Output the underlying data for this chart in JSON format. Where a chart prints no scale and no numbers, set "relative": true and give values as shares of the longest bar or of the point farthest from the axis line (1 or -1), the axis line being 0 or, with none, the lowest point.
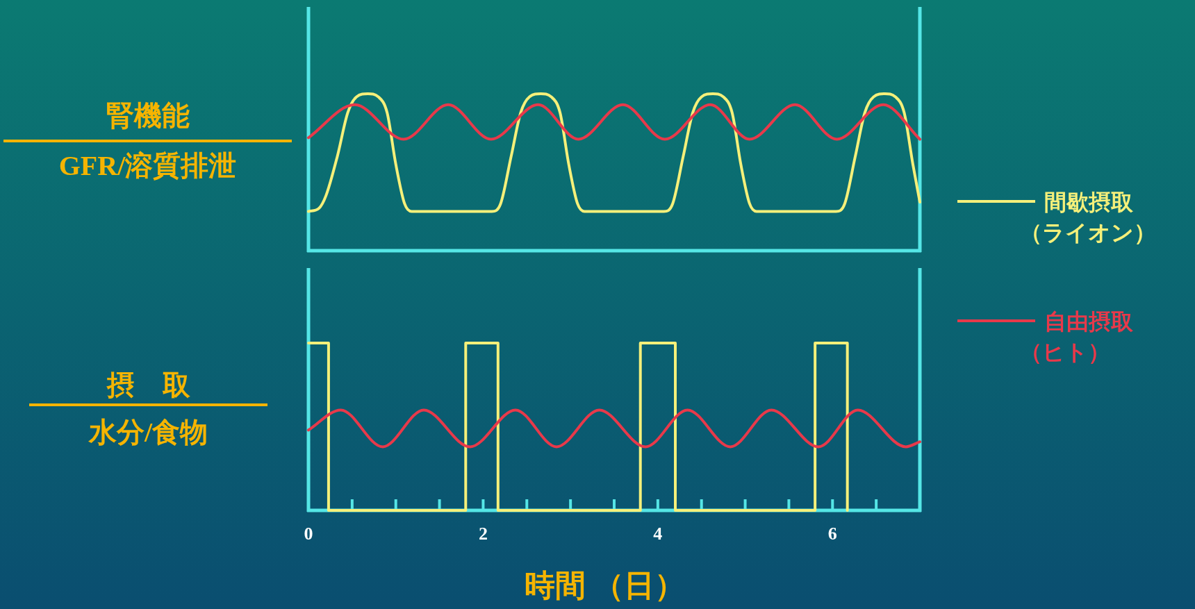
{
  "chart_data": [
    {
      "type": "line",
      "relative": true,
      "ylabel": "腎機能",
      "annotations": [
        "GFR/溶質排泄"
      ],
      "xlim": [
        0,
        7
      ],
      "legend": "right",
      "series": [
        {
          "name": "間歇摂取（ライオン）",
          "color": "#f5f07a",
          "x": [
            0,
            0.12,
            0.2,
            0.33,
            0.45,
            0.55,
            0.68,
            0.8,
            0.9,
            1.0,
            1.1,
            1.18,
            2.1,
            2.2,
            2.32,
            2.43,
            2.53,
            2.66,
            2.78,
            2.88,
            2.98,
            3.08,
            3.16,
            4.07,
            4.17,
            4.29,
            4.4,
            4.5,
            4.63,
            4.75,
            4.85,
            4.95,
            5.05,
            5.13,
            6.04,
            6.14,
            6.26,
            6.37,
            6.47,
            6.6,
            6.72,
            6.82,
            6.92,
            7.0
          ],
          "values": [
            0.25,
            0.27,
            0.35,
            0.6,
            0.88,
            0.98,
            1.0,
            0.98,
            0.88,
            0.55,
            0.3,
            0.25,
            0.25,
            0.3,
            0.6,
            0.88,
            0.98,
            1.0,
            0.98,
            0.88,
            0.55,
            0.3,
            0.25,
            0.25,
            0.3,
            0.6,
            0.88,
            0.98,
            1.0,
            0.98,
            0.88,
            0.55,
            0.3,
            0.25,
            0.25,
            0.3,
            0.6,
            0.88,
            0.98,
            1.0,
            0.98,
            0.88,
            0.55,
            0.31
          ]
        },
        {
          "name": "自由摂取（ヒト）",
          "color": "#e8394a",
          "x": [
            0,
            0.53,
            1.09,
            1.6,
            2.09,
            2.63,
            3.09,
            3.6,
            4.08,
            4.6,
            5.05,
            5.57,
            6.05,
            6.58,
            7.0
          ],
          "values": [
            0.72,
            0.93,
            0.71,
            0.93,
            0.71,
            0.93,
            0.71,
            0.93,
            0.71,
            0.93,
            0.71,
            0.93,
            0.71,
            0.93,
            0.71
          ]
        }
      ]
    },
    {
      "type": "line",
      "relative": true,
      "ylabel": "摂　取",
      "annotations": [
        "水分/食物"
      ],
      "xlabel": "時間 （日）",
      "xlim": [
        0,
        7
      ],
      "xticks": [
        0,
        {
          "value": 0.5,
          "label": null
        },
        {
          "value": 1,
          "label": null
        },
        {
          "value": 1.5,
          "label": null
        },
        2,
        {
          "value": 2.5,
          "label": null
        },
        {
          "value": 3,
          "label": null
        },
        {
          "value": 3.5,
          "label": null
        },
        4,
        {
          "value": 4.5,
          "label": null
        },
        {
          "value": 5,
          "label": null
        },
        {
          "value": 5.5,
          "label": null
        },
        6,
        {
          "value": 6.5,
          "label": null
        }
      ],
      "series": [
        {
          "type": "step",
          "color": "#f5f07a",
          "x": [
            0,
            0.23,
            1.8,
            2.17,
            3.8,
            4.2,
            5.8,
            6.17
          ],
          "values": [
            1,
            0,
            1,
            0,
            1,
            0,
            1,
            0
          ]
        },
        {
          "color": "#e8394a",
          "x": [
            0,
            0.37,
            0.85,
            1.32,
            1.85,
            2.37,
            2.84,
            3.33,
            3.86,
            4.34,
            4.83,
            5.3,
            5.84,
            6.29,
            6.84,
            7.0
          ],
          "values": [
            0.48,
            0.6,
            0.38,
            0.6,
            0.38,
            0.6,
            0.38,
            0.6,
            0.38,
            0.6,
            0.38,
            0.6,
            0.38,
            0.6,
            0.38,
            0.41
          ]
        }
      ]
    }
  ]
}
